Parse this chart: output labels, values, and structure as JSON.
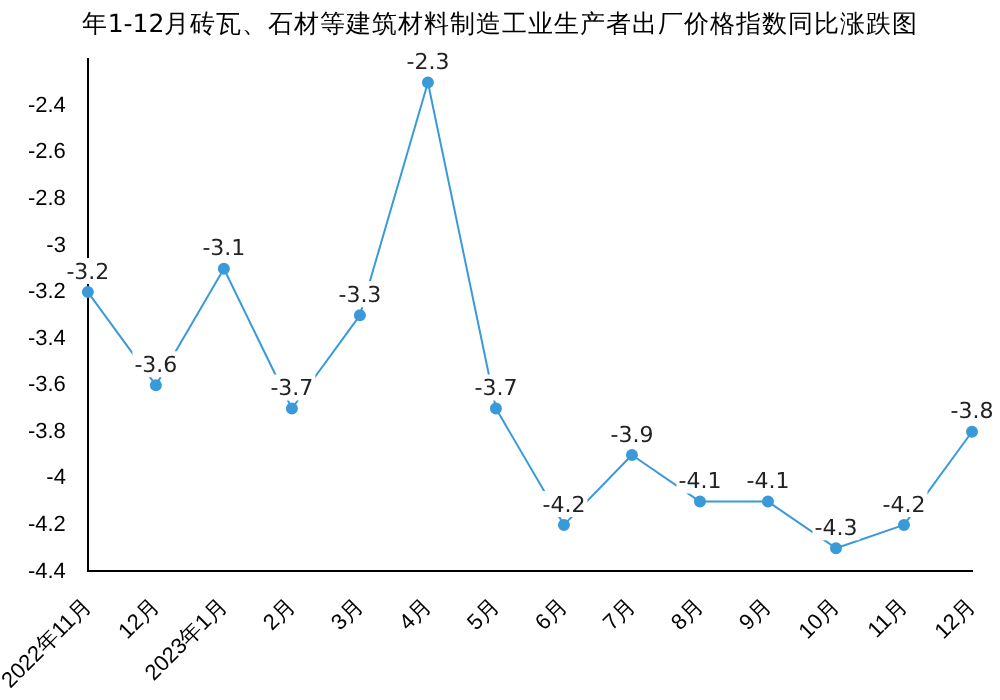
{
  "chart_data": {
    "type": "line",
    "title": "年1-12月砖瓦、石材等建筑材料制造工业生产者出厂价格指数同比涨跌图",
    "categories": [
      "2022年11月",
      "12月",
      "2023年1月",
      "2月",
      "3月",
      "4月",
      "5月",
      "6月",
      "7月",
      "8月",
      "9月",
      "10月",
      "11月",
      "12月"
    ],
    "series": [
      {
        "color": "#3a9ad9",
        "values": [
          -3.2,
          -3.6,
          -3.1,
          -3.7,
          -3.3,
          -2.3,
          -3.7,
          -4.2,
          -3.9,
          -4.1,
          -4.1,
          -4.3,
          -4.2,
          -3.8
        ]
      }
    ],
    "ylim": [
      -4.4,
      -2.2
    ],
    "yticks": [
      -4.4,
      -4.2,
      -4,
      -3.8,
      -3.6,
      -3.4,
      -3.2,
      -3,
      -2.8,
      -2.6,
      -2.4
    ],
    "grid": false,
    "legend": false,
    "marker": "circle",
    "line_style": "solid",
    "data_labels": true
  }
}
